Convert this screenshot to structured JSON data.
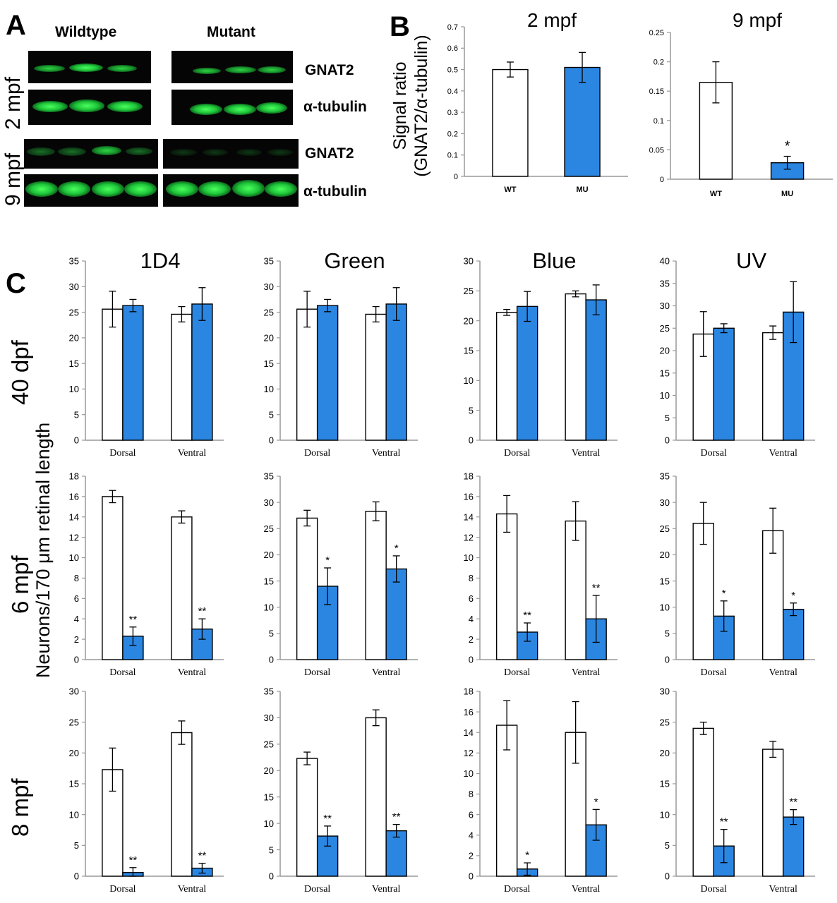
{
  "panel_letters": {
    "a": "A",
    "b": "B",
    "c": "C"
  },
  "blots": {
    "wildtype_label": "Wildtype",
    "mutant_label": "Mutant",
    "row_2mpf": "2 mpf",
    "row_9mpf": "9 mpf",
    "gnat2_label": "GNAT2",
    "tubulin_label": "α-tubulin"
  },
  "panel_b": {
    "ylabel_line1": "Signal ratio",
    "ylabel_line2": "(GNAT2/α-tubulin)"
  },
  "panel_c": {
    "column_titles": [
      "1D4",
      "Green",
      "Blue",
      "UV"
    ],
    "row_labels": [
      "40 dpf",
      "6 mpf",
      "8 mpf"
    ],
    "ylabel": "Neurons/170 μm retinal length"
  },
  "colors": {
    "mutant": "#2b86e2",
    "wildtype": "#ffffff",
    "outline": "#000000"
  },
  "chart_data": [
    {
      "id": "B1",
      "type": "bar",
      "title": "2 mpf",
      "categories": [
        "WT",
        "MU"
      ],
      "series": [
        {
          "values": [
            0.5,
            0.51
          ],
          "errors": [
            0.035,
            0.07
          ]
        }
      ],
      "ylim": [
        0,
        0.7
      ],
      "yticks": [
        0,
        0.1,
        0.2,
        0.3,
        0.4,
        0.5,
        0.6,
        0.7
      ],
      "significance": [
        "",
        ""
      ],
      "grid": false
    },
    {
      "id": "B2",
      "type": "bar",
      "title": "9 mpf",
      "categories": [
        "WT",
        "MU"
      ],
      "series": [
        {
          "values": [
            0.165,
            0.028
          ],
          "errors": [
            0.035,
            0.011
          ]
        }
      ],
      "ylim": [
        0,
        0.25
      ],
      "yticks": [
        0,
        0.05,
        0.1,
        0.15,
        0.2,
        0.25
      ],
      "significance": [
        "",
        "*"
      ],
      "grid": false
    },
    {
      "id": "C11",
      "type": "bar",
      "title": "1D4",
      "categories": [
        "Dorsal",
        "Ventral"
      ],
      "series": [
        {
          "values": [
            25.6,
            24.6
          ],
          "errors": [
            3.5,
            1.5
          ]
        },
        {
          "values": [
            26.3,
            26.6
          ],
          "errors": [
            1.2,
            3.2
          ]
        }
      ],
      "ylim": [
        0,
        35
      ],
      "yticks": [
        0,
        5,
        10,
        15,
        20,
        25,
        30,
        35
      ],
      "significance": [
        "",
        ""
      ],
      "grid": false
    },
    {
      "id": "C12",
      "type": "bar",
      "title": "Green",
      "categories": [
        "Dorsal",
        "Ventral"
      ],
      "series": [
        {
          "values": [
            25.6,
            24.6
          ],
          "errors": [
            3.5,
            1.5
          ]
        },
        {
          "values": [
            26.3,
            26.6
          ],
          "errors": [
            1.2,
            3.2
          ]
        }
      ],
      "ylim": [
        0,
        35
      ],
      "yticks": [
        0,
        5,
        10,
        15,
        20,
        25,
        30,
        35
      ],
      "significance": [
        "",
        ""
      ],
      "grid": false
    },
    {
      "id": "C13",
      "type": "bar",
      "title": "Blue",
      "categories": [
        "Dorsal",
        "Ventral"
      ],
      "series": [
        {
          "values": [
            21.4,
            24.5
          ],
          "errors": [
            0.5,
            0.5
          ]
        },
        {
          "values": [
            22.4,
            23.5
          ],
          "errors": [
            2.5,
            2.5
          ]
        }
      ],
      "ylim": [
        0,
        30
      ],
      "yticks": [
        0,
        5,
        10,
        15,
        20,
        25,
        30
      ],
      "significance": [
        "",
        ""
      ],
      "grid": false
    },
    {
      "id": "C14",
      "type": "bar",
      "title": "UV",
      "categories": [
        "Dorsal",
        "Ventral"
      ],
      "series": [
        {
          "values": [
            23.7,
            24.0
          ],
          "errors": [
            5.0,
            1.5
          ]
        },
        {
          "values": [
            25.0,
            28.6
          ],
          "errors": [
            1.0,
            6.8
          ]
        }
      ],
      "ylim": [
        0,
        40
      ],
      "yticks": [
        0,
        5,
        10,
        15,
        20,
        25,
        30,
        35,
        40
      ],
      "significance": [
        "",
        ""
      ],
      "grid": false
    },
    {
      "id": "C21",
      "type": "bar",
      "title": "",
      "categories": [
        "Dorsal",
        "Ventral"
      ],
      "series": [
        {
          "values": [
            16.0,
            14.0
          ],
          "errors": [
            0.6,
            0.6
          ]
        },
        {
          "values": [
            2.3,
            3.0
          ],
          "errors": [
            0.9,
            1.0
          ]
        }
      ],
      "ylim": [
        0,
        18
      ],
      "yticks": [
        0,
        2,
        4,
        6,
        8,
        10,
        12,
        14,
        16,
        18
      ],
      "significance": [
        "**",
        "**"
      ],
      "grid": false
    },
    {
      "id": "C22",
      "type": "bar",
      "title": "",
      "categories": [
        "Dorsal",
        "Ventral"
      ],
      "series": [
        {
          "values": [
            27.0,
            28.3
          ],
          "errors": [
            1.5,
            1.8
          ]
        },
        {
          "values": [
            14.0,
            17.3
          ],
          "errors": [
            3.5,
            2.5
          ]
        }
      ],
      "ylim": [
        0,
        35
      ],
      "yticks": [
        0,
        5,
        10,
        15,
        20,
        25,
        30,
        35
      ],
      "significance": [
        "*",
        "*"
      ],
      "grid": false
    },
    {
      "id": "C23",
      "type": "bar",
      "title": "",
      "categories": [
        "Dorsal",
        "Ventral"
      ],
      "series": [
        {
          "values": [
            14.3,
            13.6
          ],
          "errors": [
            1.8,
            1.9
          ]
        },
        {
          "values": [
            2.7,
            4.0
          ],
          "errors": [
            0.9,
            2.3
          ]
        }
      ],
      "ylim": [
        0,
        18
      ],
      "yticks": [
        0,
        2,
        4,
        6,
        8,
        10,
        12,
        14,
        16,
        18
      ],
      "significance": [
        "**",
        "**"
      ],
      "grid": false
    },
    {
      "id": "C24",
      "type": "bar",
      "title": "",
      "categories": [
        "Dorsal",
        "Ventral"
      ],
      "series": [
        {
          "values": [
            26.0,
            24.6
          ],
          "errors": [
            4.0,
            4.3
          ]
        },
        {
          "values": [
            8.3,
            9.6
          ],
          "errors": [
            2.9,
            1.2
          ]
        }
      ],
      "ylim": [
        0,
        35
      ],
      "yticks": [
        0,
        5,
        10,
        15,
        20,
        25,
        30,
        35
      ],
      "significance": [
        "*",
        "*"
      ],
      "grid": false
    },
    {
      "id": "C31",
      "type": "bar",
      "title": "",
      "categories": [
        "Dorsal",
        "Ventral"
      ],
      "series": [
        {
          "values": [
            17.3,
            23.3
          ],
          "errors": [
            3.5,
            1.9
          ]
        },
        {
          "values": [
            0.6,
            1.3
          ],
          "errors": [
            0.8,
            0.8
          ]
        }
      ],
      "ylim": [
        0,
        30
      ],
      "yticks": [
        0,
        5,
        10,
        15,
        20,
        25,
        30
      ],
      "significance": [
        "**",
        "**"
      ],
      "grid": false
    },
    {
      "id": "C32",
      "type": "bar",
      "title": "",
      "categories": [
        "Dorsal",
        "Ventral"
      ],
      "series": [
        {
          "values": [
            22.3,
            30.0
          ],
          "errors": [
            1.2,
            1.5
          ]
        },
        {
          "values": [
            7.6,
            8.6
          ],
          "errors": [
            1.9,
            1.2
          ]
        }
      ],
      "ylim": [
        0,
        35
      ],
      "yticks": [
        0,
        5,
        10,
        15,
        20,
        25,
        30,
        35
      ],
      "significance": [
        "**",
        "**"
      ],
      "grid": false
    },
    {
      "id": "C33",
      "type": "bar",
      "title": "",
      "categories": [
        "Dorsal",
        "Ventral"
      ],
      "series": [
        {
          "values": [
            14.7,
            14.0
          ],
          "errors": [
            2.4,
            3.0
          ]
        },
        {
          "values": [
            0.7,
            5.0
          ],
          "errors": [
            0.6,
            1.5
          ]
        }
      ],
      "ylim": [
        0,
        18
      ],
      "yticks": [
        0,
        2,
        4,
        6,
        8,
        10,
        12,
        14,
        16,
        18
      ],
      "significance": [
        "*",
        "*"
      ],
      "grid": false
    },
    {
      "id": "C34",
      "type": "bar",
      "title": "",
      "categories": [
        "Dorsal",
        "Ventral"
      ],
      "series": [
        {
          "values": [
            24.0,
            20.6
          ],
          "errors": [
            1.0,
            1.3
          ]
        },
        {
          "values": [
            4.9,
            9.6
          ],
          "errors": [
            2.7,
            1.2
          ]
        }
      ],
      "ylim": [
        0,
        30
      ],
      "yticks": [
        0,
        5,
        10,
        15,
        20,
        25,
        30
      ],
      "significance": [
        "**",
        "**"
      ],
      "grid": false
    }
  ]
}
